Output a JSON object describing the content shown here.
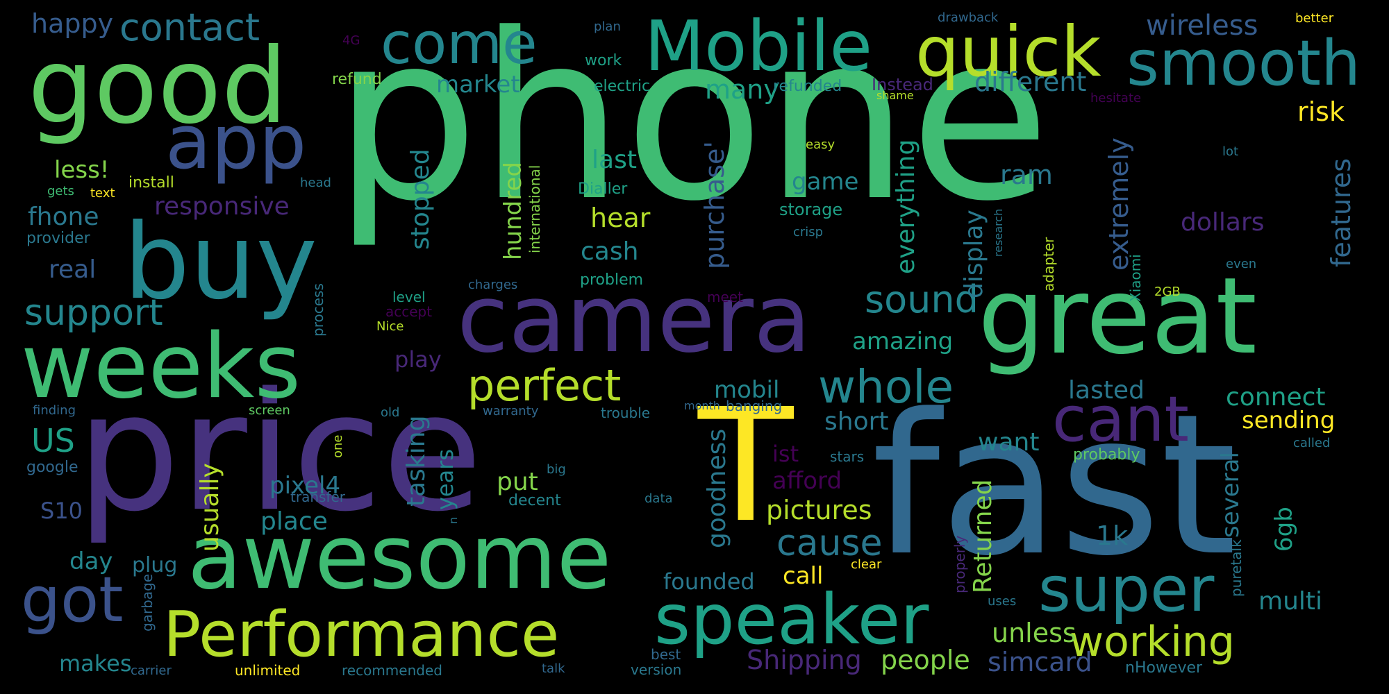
{
  "background": "#000000",
  "palette": {
    "p1": "#3fbc73",
    "p2": "#46327e",
    "p3": "#24868e",
    "p4": "#fde725",
    "p5": "#5ec962",
    "p6": "#1fa187",
    "p7": "#2a788e",
    "p8": "#3b528b",
    "p9": "#440154",
    "p10": "#b5de2b",
    "p11": "#84d44b",
    "p12": "#482878",
    "p13": "#31688e",
    "p14": "#29af7f",
    "p15": "#365c8d"
  },
  "words": {
    "phone": "phone",
    "price": "price",
    "fast": "fast",
    "camera": "camera",
    "great": "great",
    "weeks": "weeks",
    "awesome": "awesome",
    "buy": "buy",
    "good": "good",
    "T": "T",
    "Mobile": "Mobile",
    "quick": "quick",
    "smooth": "smooth",
    "come": "come",
    "app": "app",
    "speaker": "speaker",
    "Performance": "Performance",
    "got": "got",
    "super": "super",
    "cant": "cant",
    "whole": "whole",
    "perfect": "perfect",
    "working": "working",
    "contact": "contact",
    "happy": "happy",
    "sound": "sound",
    "support": "support",
    "US": "US",
    "cause": "cause",
    "pictures": "pictures",
    "Shipping": "Shipping",
    "people": "people",
    "simcard": "simcard",
    "unless": "unless",
    "wireless": "wireless",
    "different": "different",
    "market": "market",
    "risk": "risk",
    "features": "features",
    "extremely": "extremely",
    "dollars": "dollars",
    "everything": "everything",
    "display": "display",
    "ram": "ram",
    "game": "game",
    "last": "last",
    "hear": "hear",
    "cash": "cash",
    "stopped": "stopped",
    "hundred": "hundred",
    "purchase": "purchase'",
    "many": "many",
    "responsive": "responsive",
    "less": "less!",
    "fhone": "fhone",
    "real": "real",
    "amazing": "amazing",
    "mobil": "mobil",
    "play": "play",
    "lasted": "lasted",
    "connect": "connect",
    "sending": "sending",
    "short": "short",
    "want": "want",
    "several": "several",
    "6gb": "6gb",
    "1k": "1k",
    "Returned": "Returned",
    "multi": "multi",
    "goodness": "goodness",
    "usually": "usually",
    "tasking": "tasking",
    "years": "years",
    "put": "put",
    "place": "place",
    "pixel4": "pixel4",
    "afford": "afford",
    "ist": "ist",
    "call": "call",
    "founded": "founded",
    "S10": "S10",
    "day": "day",
    "makes": "makes",
    "plug": "plug",
    "electric": "electric",
    "refunded": "refunded",
    "Instead": "Instead",
    "refund": "refund",
    "work": "work",
    "plan": "plan",
    "drawback": "drawback",
    "better": "better",
    "shame": "shame",
    "hesitate": "hesitate",
    "4G": "4G",
    "Dialler": "Dialler",
    "storage": "storage",
    "crisp": "crisp",
    "easy": "easy",
    "international": "international",
    "lot": "lot",
    "research": "research",
    "adapter": "adapter",
    "even": "even",
    "Xiaomi": "Xiaomi",
    "2GB": "2GB",
    "install": "install",
    "gets": "gets",
    "text": "text",
    "head": "head",
    "provider": "provider",
    "problem": "problem",
    "meet": "meet",
    "charges": "charges",
    "process": "process",
    "level": "level",
    "accept": "accept",
    "Nice": "Nice",
    "finding": "finding",
    "screen": "screen",
    "old": "old",
    "warranty": "warranty",
    "trouble": "trouble",
    "month": "month",
    "banging": "banging",
    "one": "one",
    "google": "google",
    "big": "big",
    "transfer": "transfer",
    "decent": "decent",
    "data": "data",
    "stars": "stars",
    "probably": "probably",
    "called": "called",
    "n": "n",
    "clear": "clear",
    "properly": "properly",
    "puretalk": "puretalk",
    "uses": "uses",
    "garbage": "garbage",
    "best": "best",
    "version": "version",
    "carrier": "carrier",
    "unlimited": "unlimited",
    "recommended": "recommended",
    "talk": "talk",
    "nHowever": "nHowever"
  }
}
